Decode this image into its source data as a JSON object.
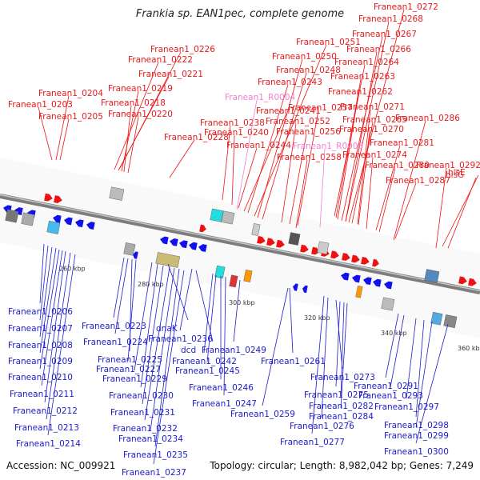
{
  "title": "Frankia sp. EAN1pec, complete genome",
  "footer": {
    "accession": "Accession: NC_009921",
    "topology": "Topology: circular; Length: 8,982,042 bp; Genes: 7,249"
  },
  "colors": {
    "top_labels": "#e8191b",
    "rna_labels": "#f07fcf",
    "bottom_labels": "#1b1bcc",
    "backbone": "#888888"
  },
  "ticks": [
    "260 kbp",
    "280 kbp",
    "300 kbp",
    "320 kbp",
    "340 kbp",
    "360 kbp"
  ],
  "top_labels": [
    "Franean1_0204",
    "Franean1_0203",
    "Franean1_0205",
    "Franean1_0226",
    "Franean1_0222",
    "Franean1_0221",
    "Franean1_0219",
    "Franean1_0218",
    "Franean1_0220",
    "Franean1_0228",
    "Franean1_0251",
    "Franean1_0250",
    "Franean1_0248",
    "Franean1_0243",
    "Franean1_0241",
    "Franean1_0238",
    "Franean1_0240",
    "Franean1_0244",
    "Franean1_0257",
    "Franean1_0252",
    "Franean1_0256",
    "Franean1_0258",
    "Franean1_0272",
    "Franean1_0268",
    "Franean1_0267",
    "Franean1_0266",
    "Franean1_0264",
    "Franean1_0263",
    "Franean1_0262",
    "Franean1_0271",
    "Franean1_0265",
    "Franean1_0270",
    "Franean1_0274",
    "Franean1_0281",
    "Franean1_0280",
    "Franean1_0286",
    "Franean1_0287",
    "Franean1_0292",
    "hisE",
    "hisG"
  ],
  "rna_labels": [
    "Franean1_R0004",
    "Franean1_R0005"
  ],
  "bottom_labels": [
    "Franean1_0206",
    "Franean1_0207",
    "Franean1_0208",
    "Franean1_0209",
    "Franean1_0210",
    "Franean1_0211",
    "Franean1_0212",
    "Franean1_0213",
    "Franean1_0214",
    "Franean1_0223",
    "dnaK",
    "Franean1_0224",
    "Franean1_0236",
    "dcd",
    "Franean1_0225",
    "Franean1_0227",
    "Franean1_0229",
    "Franean1_0230",
    "Franean1_0231",
    "Franean1_0232",
    "Franean1_0234",
    "Franean1_0235",
    "Franean1_0237",
    "Franean1_0249",
    "Franean1_0242",
    "Franean1_0245",
    "Franean1_0246",
    "Franean1_0247",
    "Franean1_0259",
    "Franean1_0261",
    "Franean1_0273",
    "Franean1_0275",
    "Franean1_0282",
    "Franean1_0284",
    "Franean1_0276",
    "Franean1_0277",
    "Franean1_0291",
    "Franean1_0293",
    "Franean1_0297",
    "Franean1_0298",
    "Franean1_0299",
    "Franean1_0300"
  ]
}
